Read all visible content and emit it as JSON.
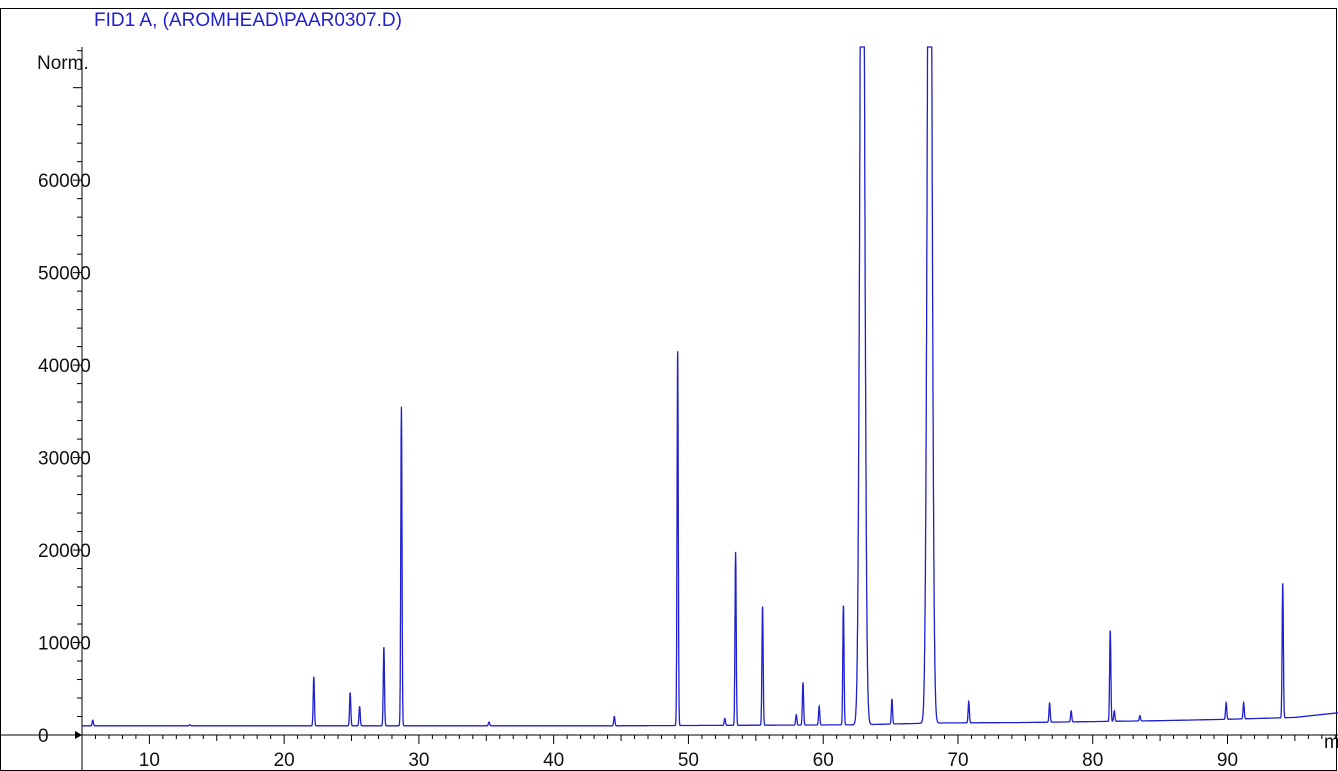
{
  "chart_data": {
    "type": "line",
    "title": "FID1 A,  (AROMHEAD\\PAAR0307.D)",
    "ylabel": "Norm.",
    "xlabel": "m",
    "xlim": [
      5.0,
      98.2
    ],
    "ylim": [
      0,
      74400
    ],
    "x_ticks": [
      10,
      20,
      30,
      40,
      50,
      60,
      70,
      80,
      90
    ],
    "y_ticks": [
      0,
      10000,
      20000,
      30000,
      40000,
      50000,
      60000
    ],
    "series_color": "#1f1fd1",
    "baseline": [
      [
        5.0,
        1000
      ],
      [
        45.0,
        1000
      ],
      [
        62.5,
        1100
      ],
      [
        68.5,
        1300
      ],
      [
        75.0,
        1350
      ],
      [
        80.0,
        1450
      ],
      [
        85.0,
        1550
      ],
      [
        90.0,
        1700
      ],
      [
        95.0,
        1900
      ],
      [
        98.2,
        2400
      ]
    ],
    "peaks": [
      {
        "x": 5.8,
        "y": 1600
      },
      {
        "x": 13.0,
        "y": 1100
      },
      {
        "x": 22.2,
        "y": 6300
      },
      {
        "x": 24.9,
        "y": 4600
      },
      {
        "x": 25.6,
        "y": 3100
      },
      {
        "x": 27.4,
        "y": 9500
      },
      {
        "x": 28.7,
        "y": 35500
      },
      {
        "x": 35.2,
        "y": 1400
      },
      {
        "x": 44.5,
        "y": 2000
      },
      {
        "x": 49.2,
        "y": 41500
      },
      {
        "x": 52.7,
        "y": 1800
      },
      {
        "x": 53.5,
        "y": 19800
      },
      {
        "x": 55.5,
        "y": 13900
      },
      {
        "x": 58.0,
        "y": 2200
      },
      {
        "x": 58.5,
        "y": 5700
      },
      {
        "x": 59.7,
        "y": 3100
      },
      {
        "x": 61.5,
        "y": 14000
      },
      {
        "x": 62.9,
        "y": 74400
      },
      {
        "x": 65.1,
        "y": 3900
      },
      {
        "x": 67.9,
        "y": 74400
      },
      {
        "x": 70.8,
        "y": 3600
      },
      {
        "x": 76.8,
        "y": 3500
      },
      {
        "x": 78.4,
        "y": 2600
      },
      {
        "x": 81.3,
        "y": 11300
      },
      {
        "x": 81.6,
        "y": 2600
      },
      {
        "x": 83.5,
        "y": 2100
      },
      {
        "x": 89.9,
        "y": 3500
      },
      {
        "x": 91.2,
        "y": 3500
      },
      {
        "x": 94.1,
        "y": 16400
      }
    ]
  }
}
